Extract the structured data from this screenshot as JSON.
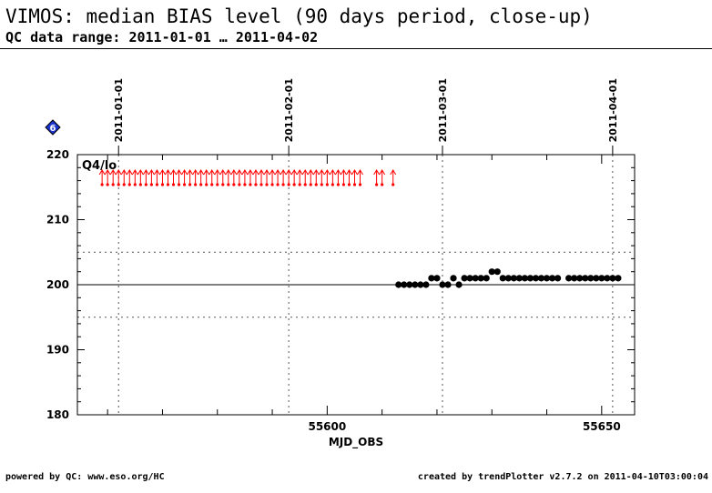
{
  "header": {
    "title": "VIMOS: median BIAS level (90 days period, close-up)",
    "subtitle": "QC data range: 2011-01-01 … 2011-04-02"
  },
  "footer": {
    "left": "powered by QC: www.eso.org/HC",
    "right": "created by trendPlotter v2.7.2 on 2011-04-10T03:00:04"
  },
  "badge": {
    "label": "6",
    "color": "#1a33cc",
    "icon": "diamond-icon"
  },
  "chart_data": {
    "type": "scatter",
    "xlabel": "MJD_OBS",
    "xlim": [
      55554.5,
      55656
    ],
    "ylim": [
      180,
      220
    ],
    "xticks": [
      55600,
      55650
    ],
    "yticks": [
      180,
      190,
      200,
      210,
      220
    ],
    "reference_line": 200,
    "threshold_lines": [
      195,
      205
    ],
    "panel_label": "Q4/lo",
    "date_markers": [
      {
        "label": "2011-01-01",
        "x": 55562
      },
      {
        "label": "2011-02-01",
        "x": 55593
      },
      {
        "label": "2011-03-01",
        "x": 55621
      },
      {
        "label": "2011-04-01",
        "x": 55652
      }
    ],
    "colors": {
      "data": "#000000",
      "outlier": "#ff0000"
    },
    "series": [
      {
        "name": "",
        "points": [
          [
            55613,
            200
          ],
          [
            55614,
            200
          ],
          [
            55615,
            200
          ],
          [
            55616,
            200
          ],
          [
            55617,
            200
          ],
          [
            55618,
            200
          ],
          [
            55619,
            201
          ],
          [
            55620,
            201
          ],
          [
            55621,
            200
          ],
          [
            55622,
            200
          ],
          [
            55623,
            201
          ],
          [
            55624,
            200
          ],
          [
            55625,
            201
          ],
          [
            55626,
            201
          ],
          [
            55627,
            201
          ],
          [
            55628,
            201
          ],
          [
            55629,
            201
          ],
          [
            55630,
            202
          ],
          [
            55631,
            202
          ],
          [
            55632,
            201
          ],
          [
            55633,
            201
          ],
          [
            55634,
            201
          ],
          [
            55635,
            201
          ],
          [
            55636,
            201
          ],
          [
            55637,
            201
          ],
          [
            55638,
            201
          ],
          [
            55639,
            201
          ],
          [
            55640,
            201
          ],
          [
            55641,
            201
          ],
          [
            55642,
            201
          ],
          [
            55644,
            201
          ],
          [
            55645,
            201
          ],
          [
            55646,
            201
          ],
          [
            55647,
            201
          ],
          [
            55648,
            201
          ],
          [
            55649,
            201
          ],
          [
            55650,
            201
          ],
          [
            55651,
            201
          ],
          [
            55652,
            201
          ],
          [
            55653,
            201
          ]
        ]
      }
    ],
    "outliers_above": [
      55559,
      55560,
      55561,
      55562,
      55563,
      55564,
      55565,
      55566,
      55567,
      55568,
      55569,
      55570,
      55571,
      55572,
      55573,
      55574,
      55575,
      55576,
      55577,
      55578,
      55579,
      55580,
      55581,
      55582,
      55583,
      55584,
      55585,
      55586,
      55587,
      55588,
      55589,
      55590,
      55591,
      55592,
      55593,
      55594,
      55595,
      55596,
      55597,
      55598,
      55599,
      55600,
      55601,
      55602,
      55603,
      55604,
      55605,
      55606,
      55609,
      55610,
      55612
    ]
  }
}
